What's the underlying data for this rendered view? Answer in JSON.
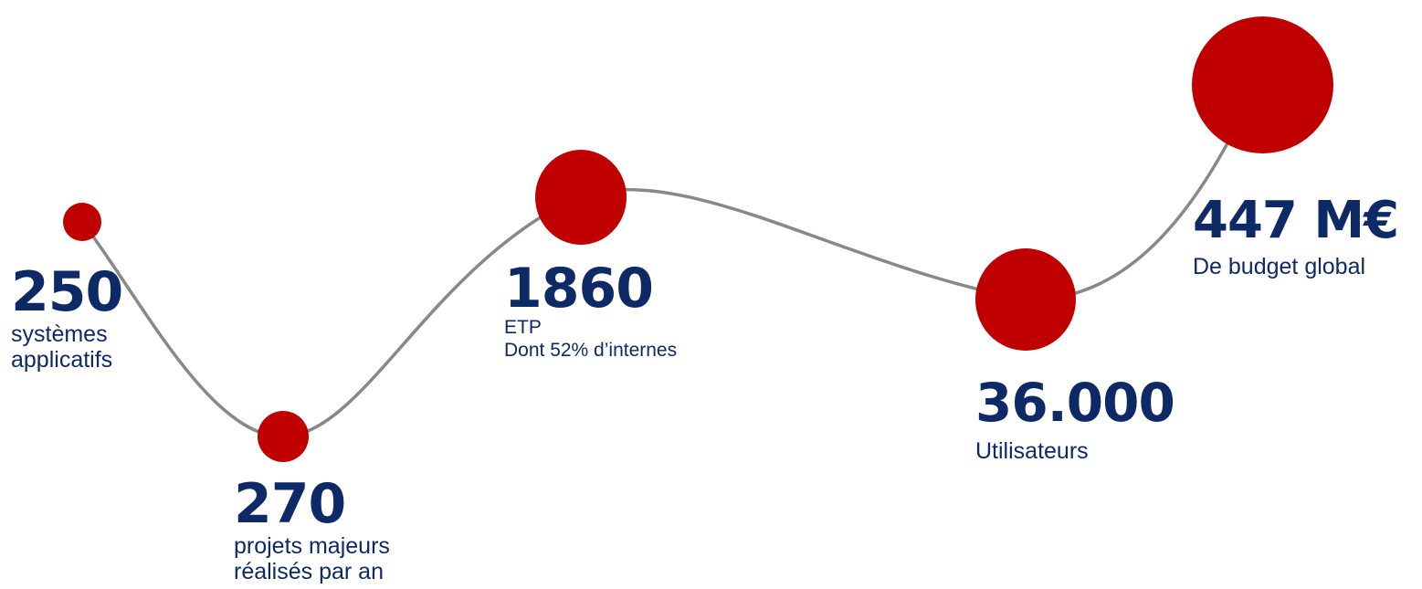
{
  "colors": {
    "dot": "#c00000",
    "line": "#888888",
    "text": "#0e2a66"
  },
  "milestones": [
    {
      "value": "250",
      "description": [
        "systèmes",
        "applicatifs"
      ]
    },
    {
      "value": "270",
      "description": [
        "projets majeurs",
        "réalisés par an"
      ]
    },
    {
      "value": "1860",
      "description": [
        "ETP",
        "Dont 52% d’internes"
      ]
    },
    {
      "value": "36.000",
      "description": [
        "Utilisateurs"
      ]
    },
    {
      "value": "447 M€",
      "description": [
        "De budget global"
      ]
    }
  ]
}
